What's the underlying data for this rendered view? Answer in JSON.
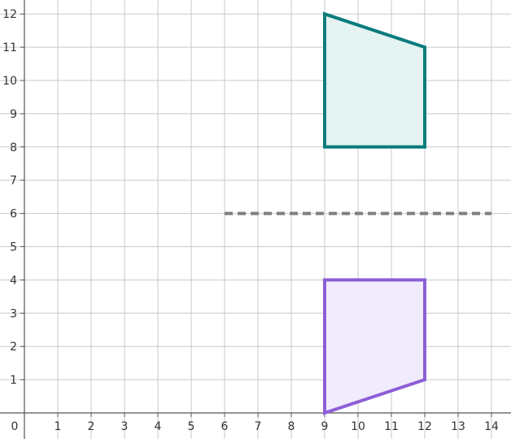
{
  "chart_data": {
    "type": "scatter",
    "title": "",
    "xlabel": "",
    "ylabel": "",
    "xlim": [
      0,
      14
    ],
    "ylim": [
      0,
      12
    ],
    "grid": true,
    "origin_label": "0",
    "x_ticks": [
      "1",
      "2",
      "3",
      "4",
      "5",
      "6",
      "7",
      "8",
      "9",
      "10",
      "11",
      "12",
      "13",
      "14"
    ],
    "y_ticks": [
      "1",
      "2",
      "3",
      "4",
      "5",
      "6",
      "7",
      "8",
      "9",
      "10",
      "11",
      "12"
    ],
    "shapes": [
      {
        "name": "quadrilateral-top",
        "stroke": "#0a7c7c",
        "fill": "#e4f2f2",
        "points": [
          [
            9,
            12
          ],
          [
            12,
            11
          ],
          [
            12,
            8
          ],
          [
            9,
            8
          ]
        ]
      },
      {
        "name": "quadrilateral-bottom",
        "stroke": "#8c5fd8",
        "fill": "#f1ecfb",
        "points": [
          [
            9,
            0
          ],
          [
            12,
            1
          ],
          [
            12,
            4
          ],
          [
            9,
            4
          ]
        ]
      }
    ],
    "reflection_line": {
      "y": 6,
      "x_start": 6,
      "x_end": 14,
      "color": "#7f7f7f",
      "style": "dashed"
    }
  }
}
